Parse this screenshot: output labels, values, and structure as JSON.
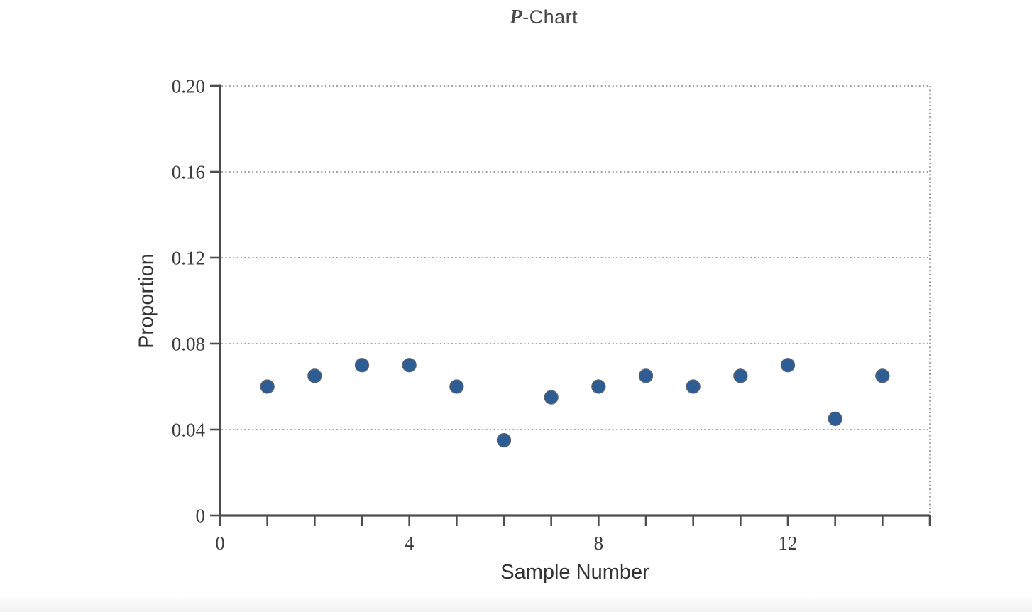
{
  "chart_data": {
    "type": "scatter",
    "title": {
      "italic_part": "P",
      "rest": "-Chart"
    },
    "xlabel": "Sample Number",
    "ylabel": "Proportion",
    "x": [
      1,
      2,
      3,
      4,
      5,
      6,
      7,
      8,
      9,
      10,
      11,
      12,
      13,
      14
    ],
    "values": [
      0.06,
      0.065,
      0.07,
      0.07,
      0.06,
      0.035,
      0.055,
      0.06,
      0.065,
      0.06,
      0.065,
      0.07,
      0.045,
      0.065
    ],
    "xlim": [
      0,
      15
    ],
    "ylim": [
      0,
      0.2
    ],
    "xtick_values": [
      0,
      1,
      2,
      3,
      4,
      5,
      6,
      7,
      8,
      9,
      10,
      11,
      12,
      13,
      14,
      15
    ],
    "xtick_labels": [
      {
        "value": 0,
        "label": "0"
      },
      {
        "value": 4,
        "label": "4"
      },
      {
        "value": 8,
        "label": "8"
      },
      {
        "value": 12,
        "label": "12"
      }
    ],
    "yticks": [
      {
        "value": 0,
        "label": "0"
      },
      {
        "value": 0.04,
        "label": "0.04"
      },
      {
        "value": 0.08,
        "label": "0.08"
      },
      {
        "value": 0.12,
        "label": "0.12"
      },
      {
        "value": 0.16,
        "label": "0.16"
      },
      {
        "value": 0.2,
        "label": "0.20"
      }
    ],
    "grid": "horizontal-dotted",
    "legend": "none",
    "colors": {
      "point": "#2e5c94",
      "point_edge": "#5a6570",
      "axis": "#4d4d4d",
      "grid": "#a3a3a3",
      "text": "#3d3d3d"
    }
  }
}
